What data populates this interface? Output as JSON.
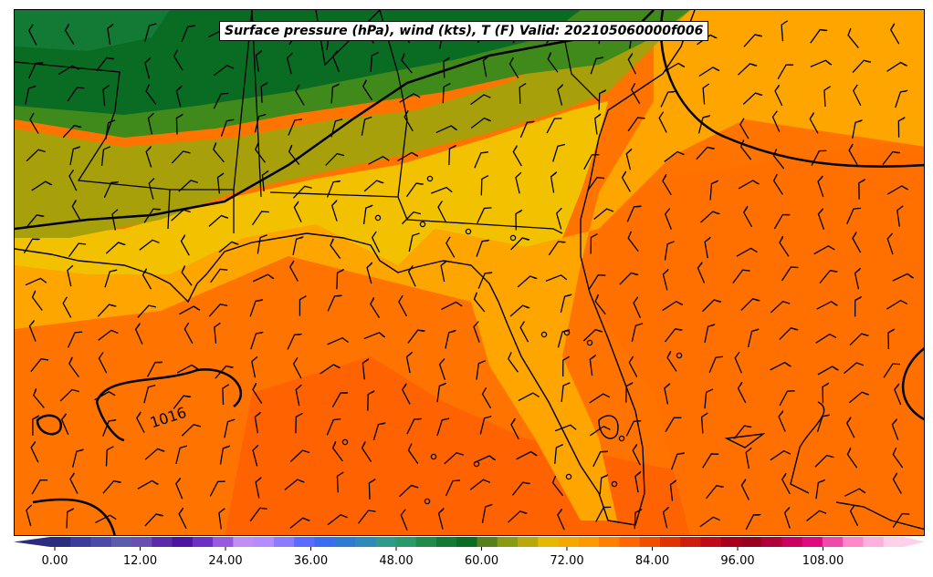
{
  "title": "Surface pressure (hPa), wind (kts), T (F) Valid: 202105060000f006",
  "pressure_contour_label": "1016",
  "colorbar": {
    "min": -6,
    "max": 120,
    "step": 3,
    "extend": "both",
    "tick_labels": [
      "0.00",
      "12.00",
      "24.00",
      "36.00",
      "48.00",
      "60.00",
      "72.00",
      "84.00",
      "96.00",
      "108.00"
    ],
    "colors": [
      "#2c2c7e",
      "#3b3b9c",
      "#4a4aa8",
      "#5c5cad",
      "#6a4fb0",
      "#5a2aa8",
      "#4c14a0",
      "#6e2fc4",
      "#9a5ae0",
      "#c08ef5",
      "#b58cff",
      "#8a7bff",
      "#5b6bff",
      "#3a6df0",
      "#2f7ad2",
      "#2e8ab8",
      "#2f9a8c",
      "#2a9968",
      "#1f8a4a",
      "#137a36",
      "#0a6b22",
      "#56801a",
      "#8a9a12",
      "#b8a80a",
      "#e6b800",
      "#f5a800",
      "#ff9900",
      "#ff7f00",
      "#ff6600",
      "#f24e00",
      "#e03400",
      "#d01c0c",
      "#c00a18",
      "#a8001c",
      "#980020",
      "#b00038",
      "#cc0060",
      "#e00a80",
      "#f04aa8",
      "#ff88c8",
      "#ffb0dc",
      "#ffd0ea"
    ]
  },
  "colors": {
    "coast_line": "#000000",
    "isobar": "#000000"
  }
}
